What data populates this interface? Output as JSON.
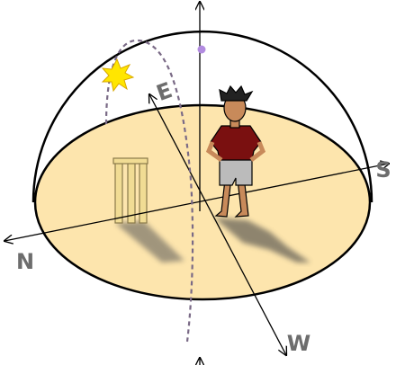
{
  "labels": {
    "east": "E",
    "south": "S",
    "north": "N",
    "west": "W"
  }
}
